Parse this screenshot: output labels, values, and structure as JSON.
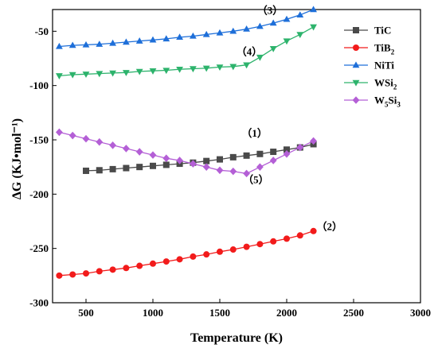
{
  "chart_data": {
    "type": "line",
    "xlabel": "Temperature (K)",
    "ylabel": "ΔG (KJ•mol⁻¹)",
    "xlim": [
      250,
      3000
    ],
    "ylim": [
      -300,
      -30
    ],
    "xticks": [
      500,
      1000,
      1500,
      2000,
      2500,
      3000
    ],
    "yticks": [
      -300,
      -250,
      -200,
      -150,
      -100,
      -50
    ],
    "legend_position": "top-right",
    "series": [
      {
        "name": "TiC",
        "label_main": "TiC",
        "label_sub": "",
        "color": "#4a4a4a",
        "marker": "square",
        "x": [
          500,
          600,
          700,
          800,
          900,
          1000,
          1100,
          1200,
          1300,
          1400,
          1500,
          1600,
          1700,
          1800,
          1900,
          2000,
          2100,
          2200
        ],
        "y": [
          -178.5,
          -178,
          -177,
          -176,
          -175,
          -174,
          -173,
          -172,
          -171,
          -169.5,
          -168,
          -166,
          -164.5,
          -163,
          -161,
          -159,
          -157,
          -154
        ]
      },
      {
        "name": "TiB2",
        "label_main": "TiB",
        "label_sub": "2",
        "color": "#f21b1b",
        "marker": "circle",
        "x": [
          300,
          400,
          500,
          600,
          700,
          800,
          900,
          1000,
          1100,
          1200,
          1300,
          1400,
          1500,
          1600,
          1700,
          1800,
          1900,
          2000,
          2100,
          2200
        ],
        "y": [
          -275,
          -274,
          -273,
          -271,
          -269.5,
          -268,
          -266,
          -264,
          -262,
          -260,
          -257.5,
          -255.5,
          -253,
          -251,
          -248.5,
          -246,
          -243.5,
          -241,
          -238,
          -234
        ]
      },
      {
        "name": "NiTi",
        "label_main": "NiTi",
        "label_sub": "",
        "color": "#1e6fd9",
        "marker": "triangle-up",
        "x": [
          300,
          400,
          500,
          600,
          700,
          800,
          900,
          1000,
          1100,
          1200,
          1300,
          1400,
          1500,
          1600,
          1700,
          1800,
          1900,
          2000,
          2100,
          2200
        ],
        "y": [
          -64,
          -63,
          -62.5,
          -62,
          -61,
          -60,
          -59,
          -58,
          -57,
          -55.5,
          -54.5,
          -53,
          -51.5,
          -50,
          -48,
          -45.5,
          -42.5,
          -39,
          -35,
          -30
        ]
      },
      {
        "name": "WSi2",
        "label_main": "WSi",
        "label_sub": "2",
        "color": "#2db36c",
        "marker": "triangle-down",
        "x": [
          300,
          400,
          500,
          600,
          700,
          800,
          900,
          1000,
          1100,
          1200,
          1300,
          1400,
          1500,
          1600,
          1700,
          1800,
          1900,
          2000,
          2100,
          2200
        ],
        "y": [
          -91,
          -90,
          -89.5,
          -89,
          -88.5,
          -88,
          -87,
          -86.5,
          -86,
          -85,
          -84.5,
          -84,
          -83,
          -82.5,
          -81,
          -74,
          -66,
          -59,
          -53,
          -46
        ]
      },
      {
        "name": "W5Si3",
        "label_main": "W",
        "label_sub": "5",
        "label_mid": "Si",
        "label_sub2": "3",
        "color": "#b45fd6",
        "marker": "diamond",
        "x": [
          300,
          400,
          500,
          600,
          700,
          800,
          900,
          1000,
          1100,
          1200,
          1300,
          1400,
          1500,
          1600,
          1700,
          1800,
          1900,
          2000,
          2100,
          2200
        ],
        "y": [
          -143,
          -146,
          -149,
          -152,
          -155,
          -158,
          -161,
          -164,
          -167,
          -169,
          -172,
          -175,
          -178,
          -179,
          -181,
          -175,
          -169,
          -163,
          -157,
          -151
        ]
      }
    ],
    "annotations": [
      {
        "text": "（3）",
        "x": 1875,
        "y": -34
      },
      {
        "text": "（4）",
        "x": 1720,
        "y": -72
      },
      {
        "text": "（1）",
        "x": 1760,
        "y": -147
      },
      {
        "text": "（5）",
        "x": 1770,
        "y": -190
      },
      {
        "text": "（2）",
        "x": 2320,
        "y": -233
      }
    ]
  }
}
